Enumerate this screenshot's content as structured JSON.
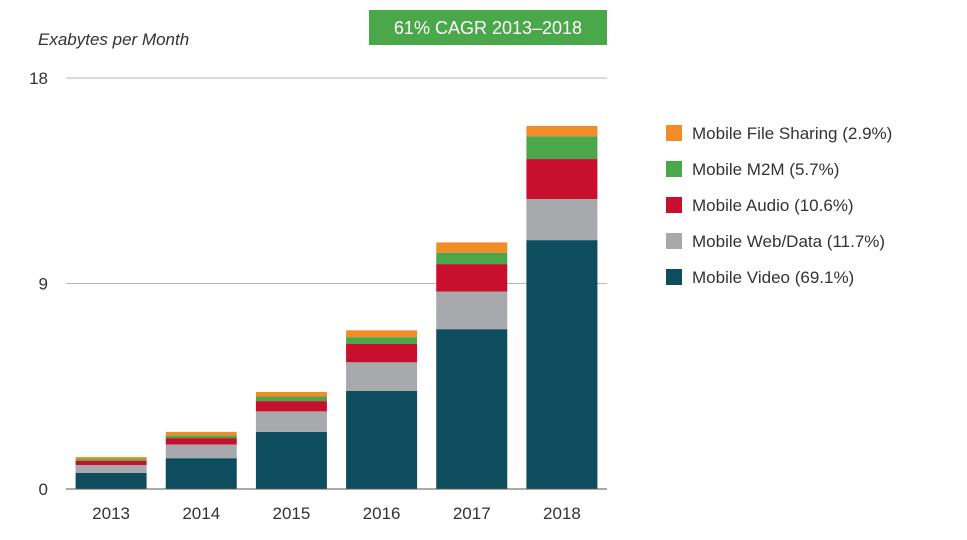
{
  "chart_data": {
    "type": "bar",
    "stacked": true,
    "ylabel": "Exabytes per Month",
    "ylim": [
      0,
      18
    ],
    "yticks": [
      0,
      9,
      18
    ],
    "grid": true,
    "legend_position": "right",
    "annotation": "61% CAGR 2013–2018",
    "annotation_color": "#4aa84a",
    "categories": [
      "2013",
      "2014",
      "2015",
      "2016",
      "2017",
      "2018"
    ],
    "series": [
      {
        "name": "Mobile Video (69.1%)",
        "color": "#0e4d5e",
        "values": [
          0.7,
          1.35,
          2.5,
          4.3,
          7.0,
          10.9
        ]
      },
      {
        "name": "Mobile Web/Data (11.7%)",
        "color": "#a7a9ac",
        "values": [
          0.35,
          0.6,
          0.9,
          1.25,
          1.65,
          1.8
        ]
      },
      {
        "name": "Mobile Audio (10.6%)",
        "color": "#c8102e",
        "values": [
          0.18,
          0.28,
          0.45,
          0.8,
          1.2,
          1.75
        ]
      },
      {
        "name": "Mobile M2M (5.7%)",
        "color": "#4aa84a",
        "values": [
          0.08,
          0.12,
          0.2,
          0.3,
          0.5,
          1.0
        ]
      },
      {
        "name": "Mobile File Sharing (2.9%)",
        "color": "#f28c28",
        "values": [
          0.09,
          0.15,
          0.2,
          0.3,
          0.45,
          0.45
        ]
      }
    ],
    "legend_order": [
      4,
      3,
      2,
      1,
      0
    ]
  }
}
